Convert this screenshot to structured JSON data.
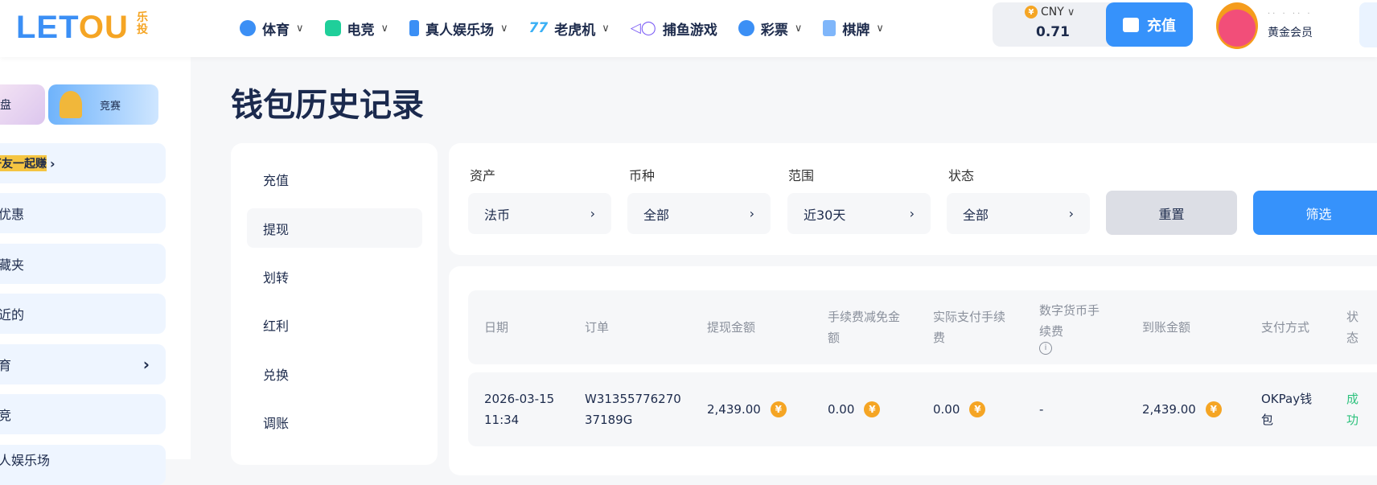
{
  "header": {
    "logo": {
      "text_main": "LETOU",
      "text_cn": "乐投"
    },
    "nav": [
      {
        "label": "体育",
        "icon": "soccer-ball-icon",
        "color": "#3b8ff5",
        "dropdown": true
      },
      {
        "label": "电竞",
        "icon": "gamepad-icon",
        "color": "#1fcf9a",
        "dropdown": true
      },
      {
        "label": "真人娱乐场",
        "icon": "tie-icon",
        "color": "#3b8ff5",
        "dropdown": true
      },
      {
        "label": "老虎机",
        "icon": "slot-777-icon",
        "color": "#3bb0f5",
        "dropdown": true
      },
      {
        "label": "捕鱼游戏",
        "icon": "fish-icon",
        "color": "#7b5cf5",
        "dropdown": false
      },
      {
        "label": "彩票",
        "icon": "lottery-ball-icon",
        "color": "#3b8ff5",
        "dropdown": true
      },
      {
        "label": "棋牌",
        "icon": "cards-icon",
        "color": "#3b8ff5",
        "dropdown": true
      }
    ],
    "currency": "CNY",
    "balance": "0.71",
    "deposit_label": "充值",
    "user": {
      "level": "黄金会员"
    }
  },
  "sidebar": {
    "promo": [
      {
        "label": "转盘"
      },
      {
        "label": "竞赛"
      }
    ],
    "refer": "推荐好友一起赚",
    "items": [
      {
        "label": "新优惠"
      },
      {
        "label": "收藏夹"
      },
      {
        "label": "最近的"
      },
      {
        "label": "体育"
      },
      {
        "label": "电竞"
      },
      {
        "label": "真人娱乐场"
      }
    ]
  },
  "page": {
    "title": "钱包历史记录"
  },
  "tabs": [
    {
      "label": "充值"
    },
    {
      "label": "提现",
      "active": true
    },
    {
      "label": "划转"
    },
    {
      "label": "红利"
    },
    {
      "label": "兑换"
    },
    {
      "label": "调账"
    }
  ],
  "filters": {
    "asset": {
      "label": "资产",
      "value": "法币"
    },
    "currency": {
      "label": "币种",
      "value": "全部"
    },
    "range": {
      "label": "范围",
      "value": "近30天"
    },
    "status": {
      "label": "状态",
      "value": "全部"
    },
    "reset": "重置",
    "apply": "筛选"
  },
  "table": {
    "columns": [
      "日期",
      "订单",
      "提现金额",
      "手续费减免金额",
      "实际支付手续费",
      "数字货币手续费",
      "到账金额",
      "支付方式",
      "状态"
    ],
    "rows": [
      {
        "date": "2026-03-15 11:34",
        "order": "W3135577627037189G",
        "amount": "2,439.00",
        "fee_waived": "0.00",
        "fee_paid": "0.00",
        "crypto_fee": "-",
        "received": "2,439.00",
        "method": "OKPay钱包",
        "status": "成功"
      }
    ]
  },
  "colors": {
    "accent": "#3692fb",
    "success": "#2ec27e",
    "coin": "#f5a524"
  }
}
